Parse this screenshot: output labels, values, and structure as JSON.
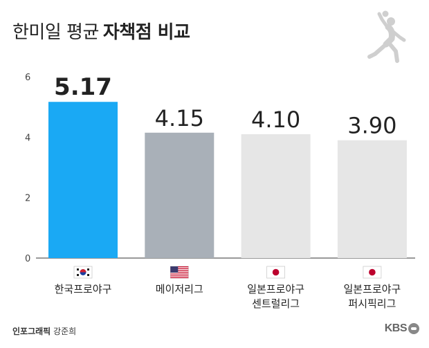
{
  "title": {
    "light": "한미일 평균",
    "bold": "자책점 비교"
  },
  "credit": {
    "role": "인포그래픽",
    "name": "강준희"
  },
  "logo": "KBS",
  "chart_data": {
    "type": "bar",
    "categories": [
      [
        "한국프로야구"
      ],
      [
        "메이저리그"
      ],
      [
        "일본프로야구",
        "센트럴리그"
      ],
      [
        "일본프로야구",
        "퍼시픽리그"
      ]
    ],
    "values": [
      5.17,
      4.15,
      4.1,
      3.9
    ],
    "value_labels": [
      "5.17",
      "4.15",
      "4.10",
      "3.90"
    ],
    "flags": [
      "korea",
      "usa",
      "japan",
      "japan"
    ],
    "bar_colors": [
      "#1aa9f4",
      "#a9b0b8",
      "#e6e6e6",
      "#e6e6e6"
    ],
    "highlight": 0,
    "ylim": [
      0,
      6
    ],
    "yticks": [
      0,
      2,
      4,
      6
    ],
    "grid": false,
    "title": "한미일 평균 자책점 비교",
    "xlabel": "",
    "ylabel": ""
  }
}
